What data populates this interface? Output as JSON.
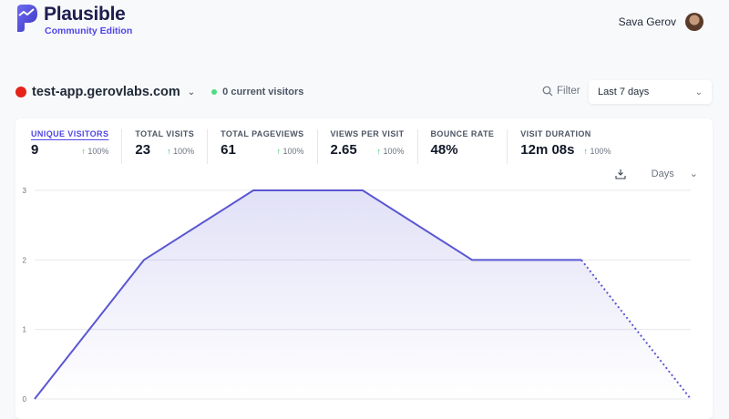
{
  "header": {
    "brand": "Plausible",
    "edition": "Community Edition",
    "user_name": "Sava Gerov"
  },
  "site": {
    "name": "test-app.gerovlabs.com",
    "current_visitors": "0 current visitors",
    "status_color": "#e5231b"
  },
  "toolbar": {
    "filter_label": "Filter",
    "period": "Last 7 days",
    "interval": "Days"
  },
  "stats": [
    {
      "label": "UNIQUE VISITORS",
      "value": "9",
      "change": "100%",
      "active": true
    },
    {
      "label": "TOTAL VISITS",
      "value": "23",
      "change": "100%"
    },
    {
      "label": "TOTAL PAGEVIEWS",
      "value": "61",
      "change": "100%"
    },
    {
      "label": "VIEWS PER VISIT",
      "value": "2.65",
      "change": "100%"
    },
    {
      "label": "BOUNCE RATE",
      "value": "48%",
      "change": ""
    },
    {
      "label": "VISIT DURATION",
      "value": "12m 08s",
      "change": "100%"
    }
  ],
  "chart_data": {
    "type": "area",
    "y_ticks": [
      "0",
      "1",
      "2",
      "3"
    ],
    "ylim": [
      0,
      3
    ],
    "values": [
      0,
      2,
      3,
      3,
      2,
      2,
      0
    ],
    "incomplete_last_segment": true,
    "grid": true,
    "color": "#5a57d2"
  }
}
